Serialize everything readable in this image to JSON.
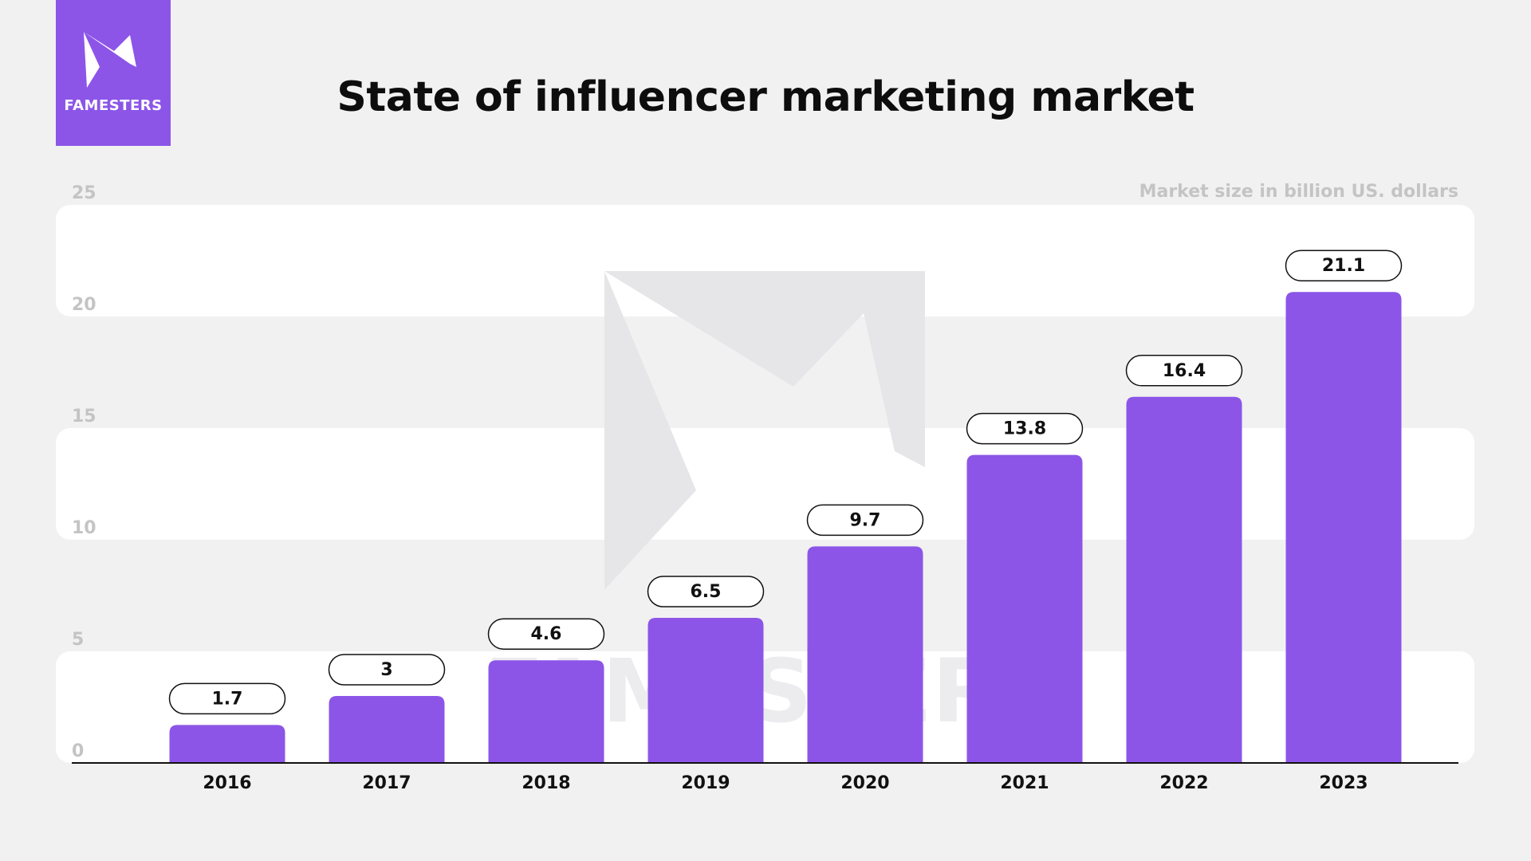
{
  "brand": {
    "name": "FAMESTERS",
    "color": "#8c55e8"
  },
  "title": "State of influencer marketing market",
  "units_label": "Market size in billion US. dollars",
  "chart_data": {
    "type": "bar",
    "title": "State of influencer marketing market",
    "ylabel": "Market size in billion US. dollars",
    "xlabel": "",
    "categories": [
      "2016",
      "2017",
      "2018",
      "2019",
      "2020",
      "2021",
      "2022",
      "2023"
    ],
    "values": [
      1.7,
      3,
      4.6,
      6.5,
      9.7,
      13.8,
      16.4,
      21.1
    ],
    "value_labels": [
      "1.7",
      "3",
      "4.6",
      "6.5",
      "9.7",
      "13.8",
      "16.4",
      "21.1"
    ],
    "ylim": [
      0,
      25
    ],
    "yticks": [
      0,
      5,
      10,
      15,
      20,
      25
    ],
    "grid": true,
    "bar_color": "#8c55e8",
    "band_color": "#ffffff"
  }
}
